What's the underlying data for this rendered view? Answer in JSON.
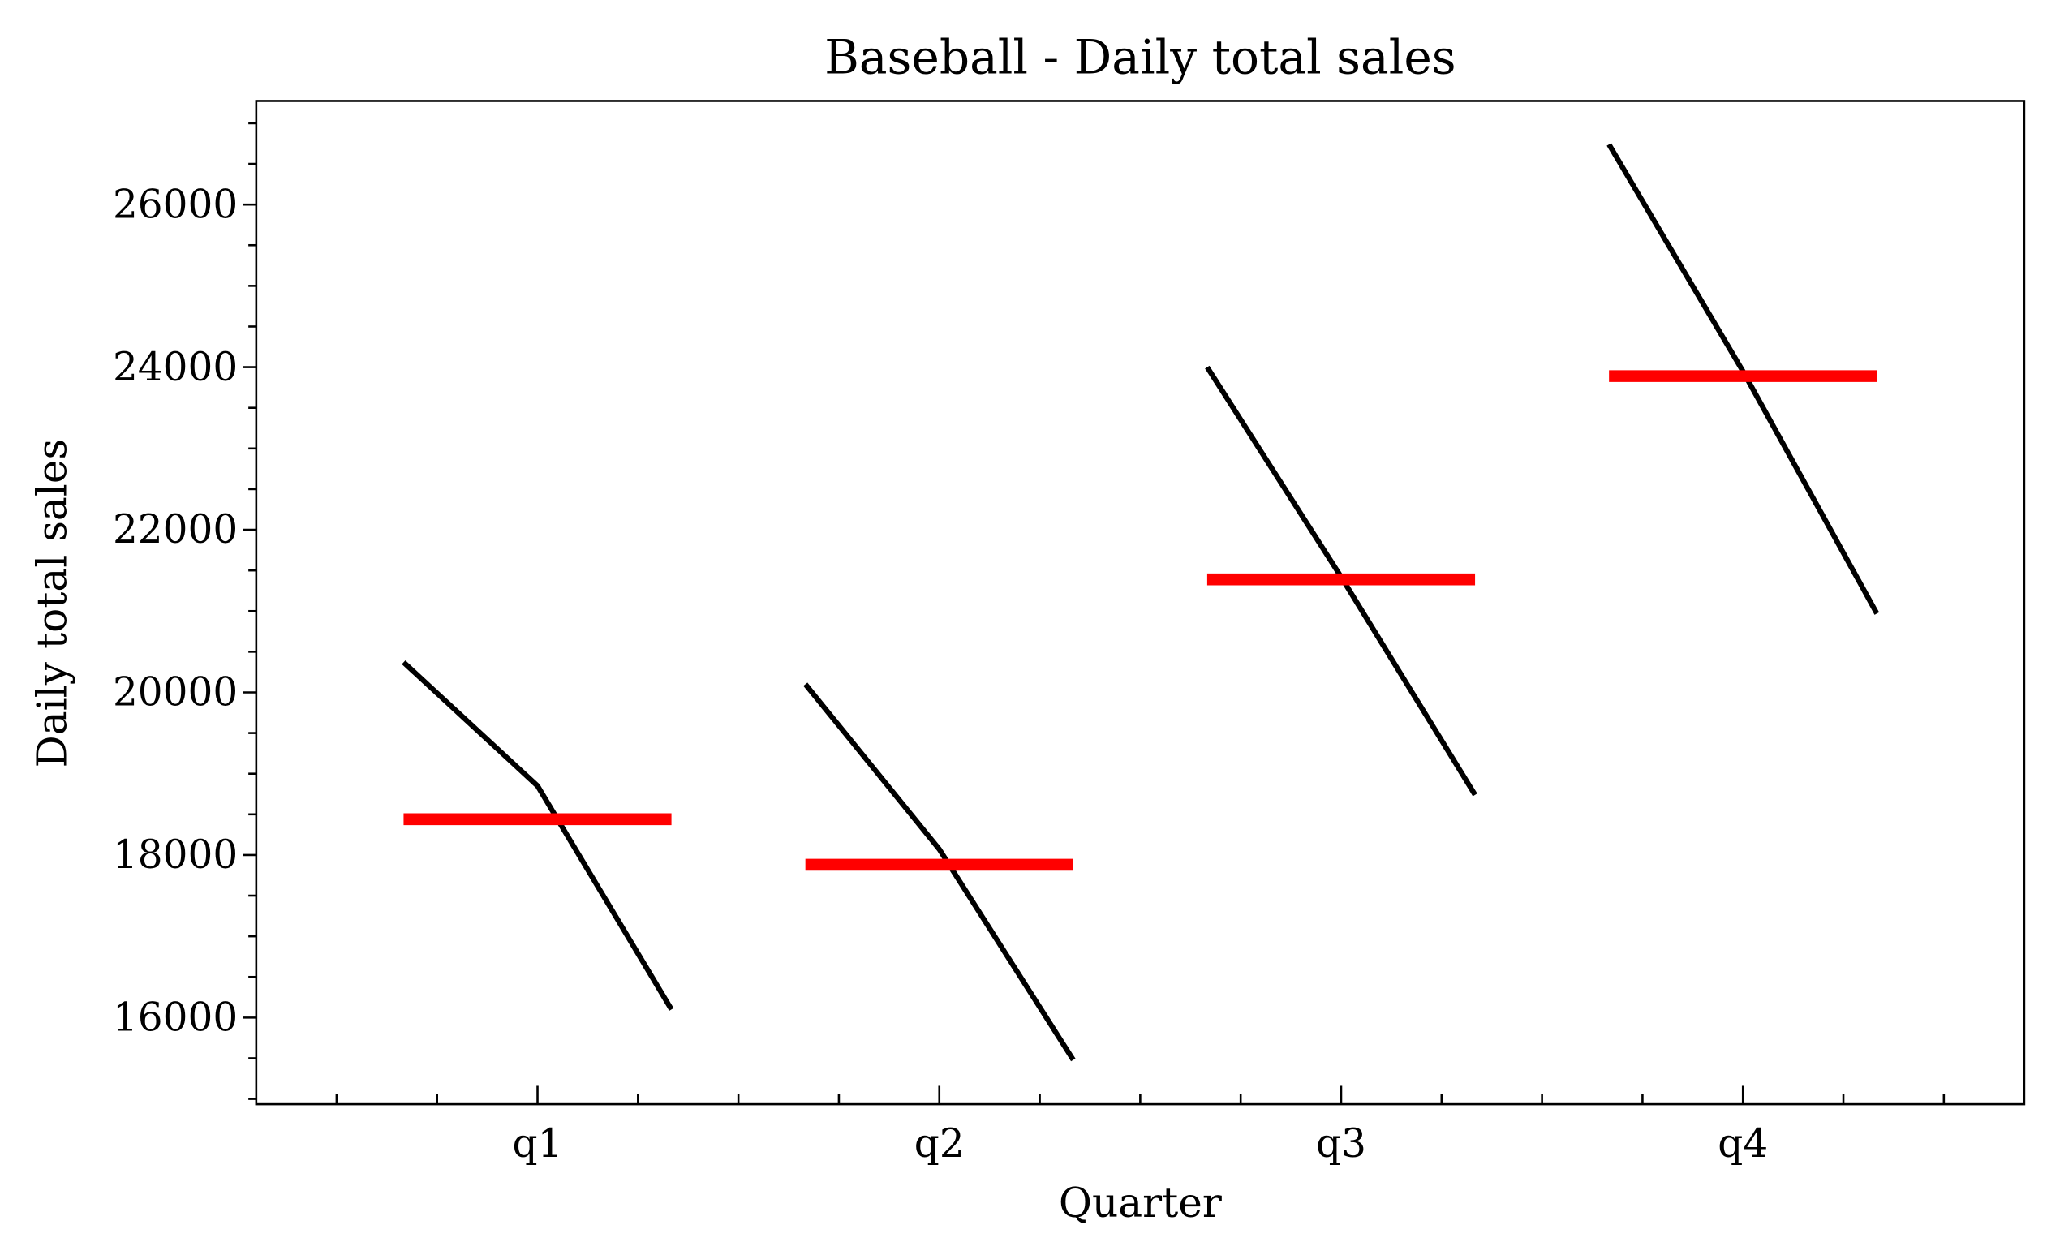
{
  "chart_data": {
    "type": "line",
    "title": "Baseball - Daily total sales",
    "xlabel": "Quarter",
    "ylabel": "Daily total sales",
    "categories": [
      "q1",
      "q2",
      "q3",
      "q4"
    ],
    "values": [
      [
        20370,
        18850,
        16100
      ],
      [
        20100,
        18070,
        15480
      ],
      [
        24000,
        21420,
        18740
      ],
      [
        26740,
        23950,
        20970
      ]
    ],
    "means": [
      18440,
      17880,
      21390,
      23890
    ],
    "color": "#000000",
    "mean_color": "#ff0000",
    "xlim": [
      -0.7,
      3.7
    ],
    "xminorticks": [
      -0.5,
      -0.25,
      0.25,
      0.5,
      0.75,
      1.25,
      1.5,
      1.75,
      2.25,
      2.5,
      2.75,
      3.25,
      3.5
    ],
    "ylim": [
      14935,
      27274
    ],
    "yticks": [
      16000,
      18000,
      20000,
      22000,
      24000,
      26000
    ],
    "yminorticks": [
      15000,
      15500,
      16500,
      17000,
      17500,
      18500,
      19000,
      19500,
      20500,
      21000,
      21500,
      22500,
      23000,
      23500,
      24500,
      25000,
      25500,
      26500,
      27000
    ]
  }
}
